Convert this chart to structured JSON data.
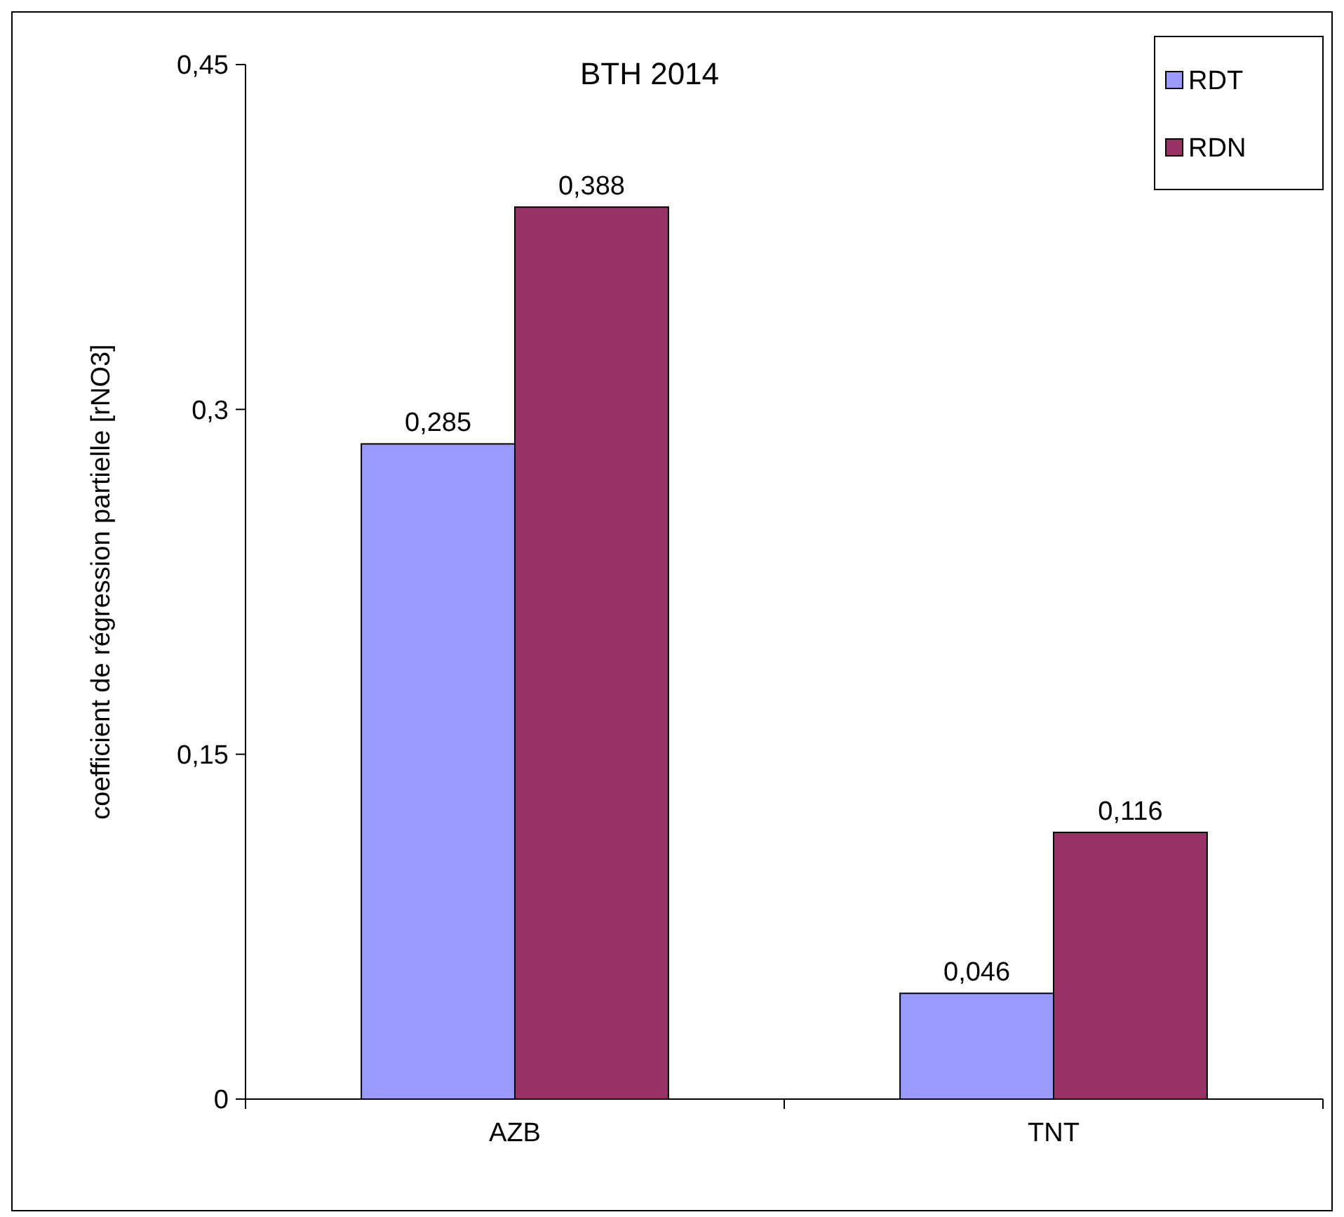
{
  "chart_data": {
    "type": "bar",
    "title": "BTH 2014",
    "ylabel": "coefficient de régression partielle [rNO3]",
    "categories": [
      "AZB",
      "TNT"
    ],
    "series": [
      {
        "name": "RDT",
        "color": "#9999ff",
        "values": [
          0.285,
          0.046
        ],
        "value_labels": [
          "0,285",
          "0,046"
        ]
      },
      {
        "name": "RDN",
        "color": "#993366",
        "values": [
          0.388,
          0.116
        ],
        "value_labels": [
          "0,388",
          "0,116"
        ]
      }
    ],
    "ylim": [
      0,
      0.45
    ],
    "yticks": [
      {
        "value": 0,
        "label": "0"
      },
      {
        "value": 0.15,
        "label": "0,15"
      },
      {
        "value": 0.3,
        "label": "0,3"
      },
      {
        "value": 0.45,
        "label": "0,45"
      }
    ],
    "grid": false,
    "legend": "top right"
  }
}
